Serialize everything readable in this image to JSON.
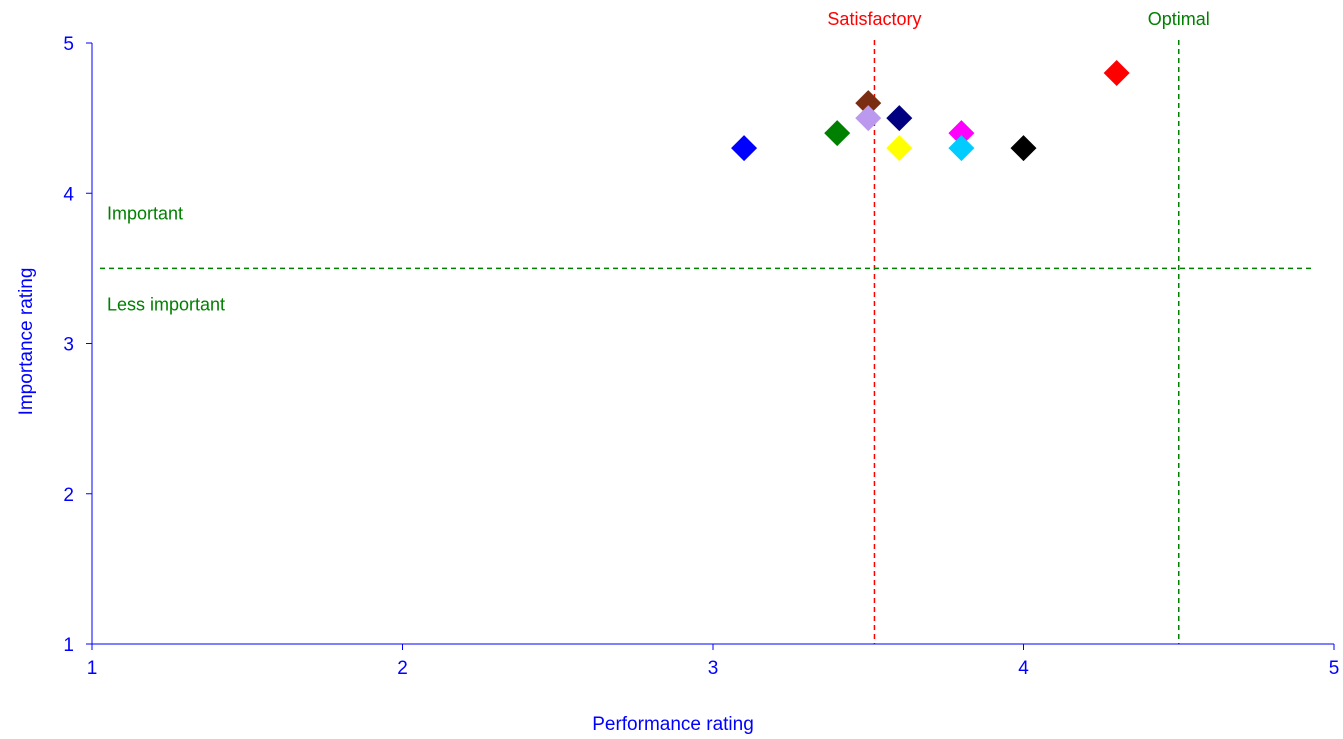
{
  "chart_data": {
    "type": "scatter",
    "title": "",
    "xlabel": "Performance rating",
    "ylabel": "Importance rating",
    "xlim": [
      1,
      5
    ],
    "ylim": [
      1,
      5
    ],
    "xticks": [
      "1",
      "2",
      "3",
      "4",
      "5"
    ],
    "yticks": [
      "1",
      "2",
      "3",
      "4",
      "5"
    ],
    "grid": false,
    "legend": "none",
    "axis_color": "#0000ff",
    "points": [
      {
        "x": 3.1,
        "y": 4.3,
        "color": "#0000ff"
      },
      {
        "x": 3.4,
        "y": 4.4,
        "color": "#008000"
      },
      {
        "x": 3.5,
        "y": 4.6,
        "color": "#7b2d12"
      },
      {
        "x": 3.5,
        "y": 4.5,
        "color": "#bb99ee"
      },
      {
        "x": 3.6,
        "y": 4.5,
        "color": "#000080"
      },
      {
        "x": 3.6,
        "y": 4.3,
        "color": "#ffff00"
      },
      {
        "x": 3.8,
        "y": 4.4,
        "color": "#ff00ff"
      },
      {
        "x": 3.8,
        "y": 4.3,
        "color": "#00ccff"
      },
      {
        "x": 4.0,
        "y": 4.3,
        "color": "#000000"
      },
      {
        "x": 4.3,
        "y": 4.8,
        "color": "#ff0000"
      }
    ],
    "reference_lines": [
      {
        "orientation": "vertical",
        "value": 3.52,
        "label": "Satisfactory",
        "color": "#ff0000"
      },
      {
        "orientation": "vertical",
        "value": 4.5,
        "label": "Optimal",
        "color": "#008000"
      },
      {
        "orientation": "horizontal",
        "value": 3.5,
        "label_above": "Important",
        "label_below": "Less important",
        "color": "#008000"
      }
    ]
  }
}
